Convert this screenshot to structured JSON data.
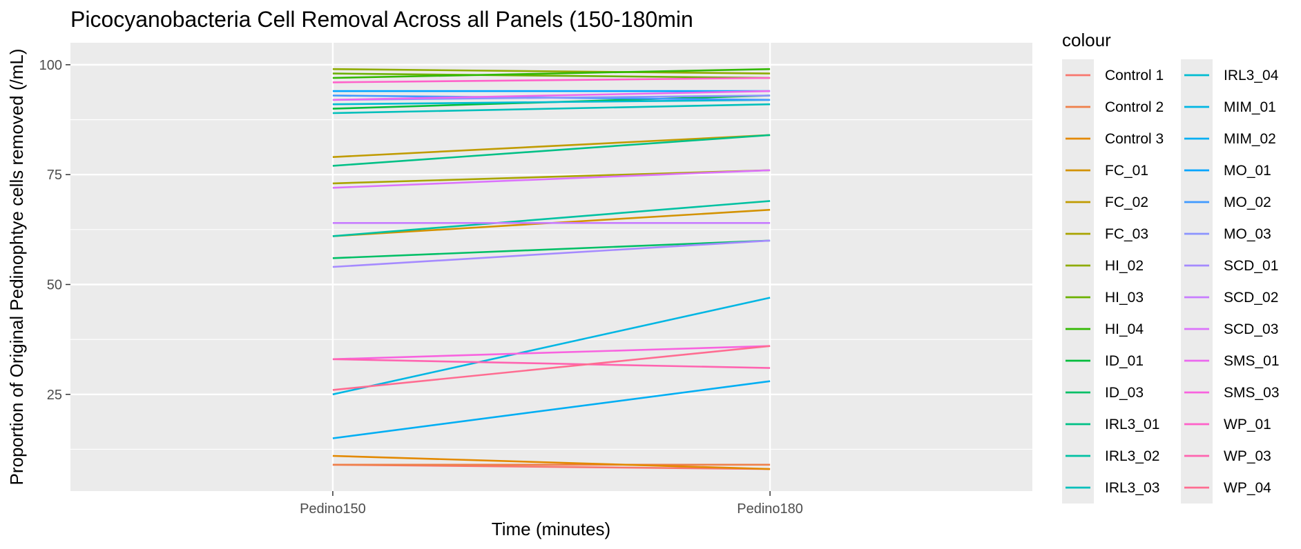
{
  "chart_data": {
    "type": "line",
    "title": "Picocyanobacteria Cell Removal Across all Panels (150-180min",
    "xlabel": "Time (minutes)",
    "ylabel": "Proportion of Original Pedinophtye cells removed (/mL)",
    "categories": [
      "Pedino150",
      "Pedino180"
    ],
    "ylim": [
      3,
      105
    ],
    "yticks": [
      25,
      50,
      75,
      100
    ],
    "ytick_labels": [
      "25",
      "50",
      "75",
      "100"
    ],
    "grid": true,
    "legend_title": "colour",
    "legend_position": "right",
    "series": [
      {
        "name": "Control 1",
        "color": "#F8766D",
        "values": [
          9,
          8
        ]
      },
      {
        "name": "Control 2",
        "color": "#EF7F49",
        "values": [
          9,
          9
        ]
      },
      {
        "name": "Control 3",
        "color": "#E38900",
        "values": [
          11,
          8
        ]
      },
      {
        "name": "FC_01",
        "color": "#D39200",
        "values": [
          61,
          67
        ]
      },
      {
        "name": "FC_02",
        "color": "#C09B00",
        "values": [
          79,
          84
        ]
      },
      {
        "name": "FC_03",
        "color": "#A9A400",
        "values": [
          73,
          76
        ]
      },
      {
        "name": "HI_02",
        "color": "#8EAB00",
        "values": [
          99,
          98
        ]
      },
      {
        "name": "HI_03",
        "color": "#6BB100",
        "values": [
          98,
          97
        ]
      },
      {
        "name": "HI_04",
        "color": "#31B800",
        "values": [
          97,
          99
        ]
      },
      {
        "name": "ID_01",
        "color": "#00BC3B",
        "values": [
          90,
          93
        ]
      },
      {
        "name": "ID_03",
        "color": "#00BF66",
        "values": [
          56,
          60
        ]
      },
      {
        "name": "IRL3_01",
        "color": "#00C086",
        "values": [
          77,
          84
        ]
      },
      {
        "name": "IRL3_02",
        "color": "#00C1A2",
        "values": [
          61,
          69
        ]
      },
      {
        "name": "IRL3_03",
        "color": "#00BFBB",
        "values": [
          89,
          91
        ]
      },
      {
        "name": "IRL3_04",
        "color": "#00BCD1",
        "values": [
          91,
          92
        ]
      },
      {
        "name": "MIM_01",
        "color": "#00B6E3",
        "values": [
          25,
          47
        ]
      },
      {
        "name": "MIM_02",
        "color": "#00AEF3",
        "values": [
          15,
          28
        ]
      },
      {
        "name": "MO_01",
        "color": "#00A5FF",
        "values": [
          94,
          94
        ]
      },
      {
        "name": "MO_02",
        "color": "#3F99FF",
        "values": [
          93,
          92
        ]
      },
      {
        "name": "MO_03",
        "color": "#8B93FF",
        "values": [
          92,
          93
        ]
      },
      {
        "name": "SCD_01",
        "color": "#A58AFF",
        "values": [
          54,
          60
        ]
      },
      {
        "name": "SCD_02",
        "color": "#C77CFF",
        "values": [
          64,
          64
        ]
      },
      {
        "name": "SCD_03",
        "color": "#DB72FB",
        "values": [
          72,
          76
        ]
      },
      {
        "name": "SMS_01",
        "color": "#EB68EF",
        "values": [
          92,
          94
        ]
      },
      {
        "name": "SMS_03",
        "color": "#F863DF",
        "values": [
          33,
          36
        ]
      },
      {
        "name": "WP_01",
        "color": "#FF61C9",
        "values": [
          96,
          97
        ]
      },
      {
        "name": "WP_03",
        "color": "#FF64B0",
        "values": [
          33,
          31
        ]
      },
      {
        "name": "WP_04",
        "color": "#FF6C91",
        "values": [
          26,
          36
        ]
      }
    ]
  }
}
